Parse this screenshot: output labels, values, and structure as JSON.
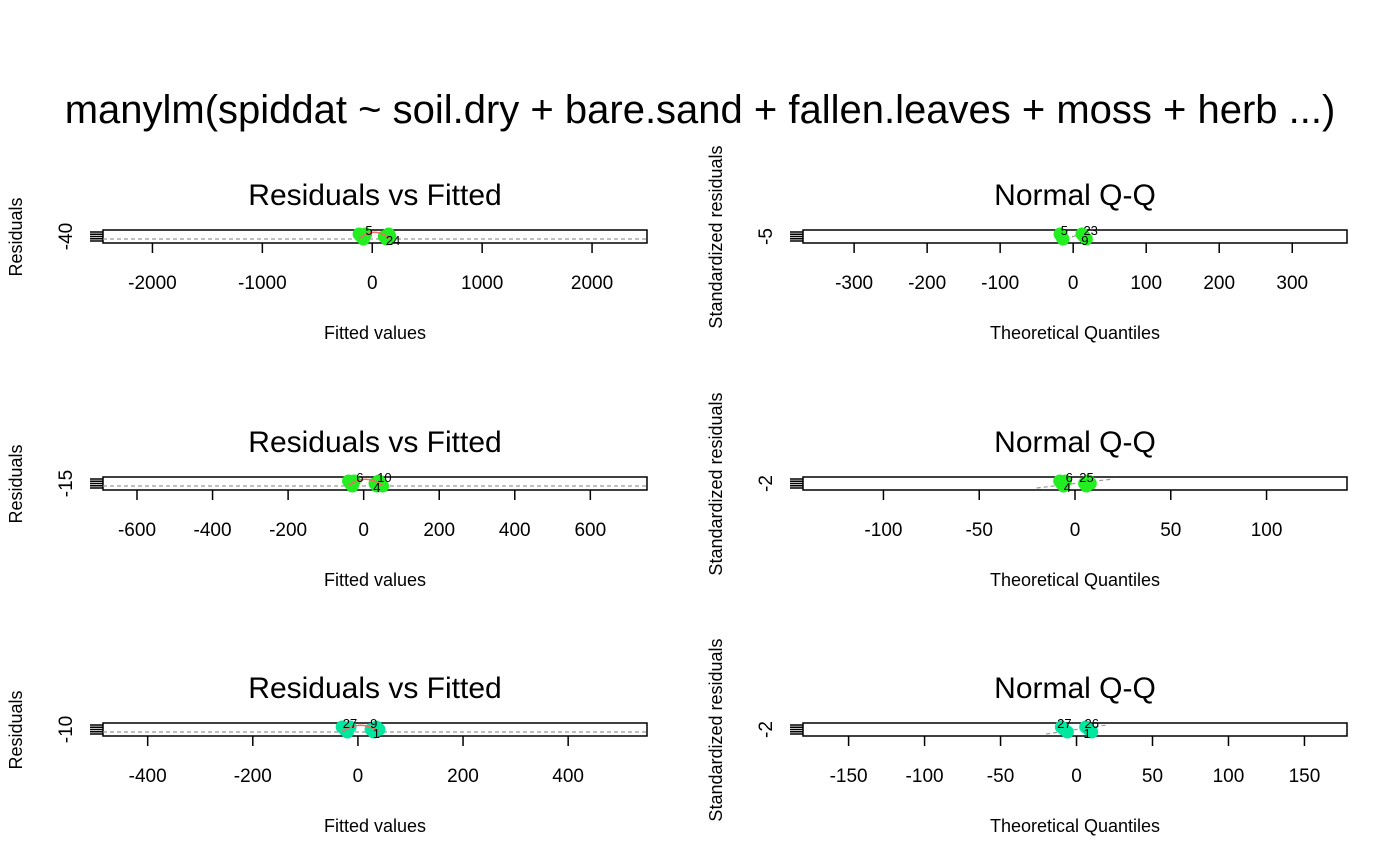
{
  "figure": {
    "title": "manylm(spiddat ~ soil.dry + bare.sand + fallen.leaves + moss + herb ...)"
  },
  "colors": {
    "title_red": "#ff0000",
    "point_green": "#22ee22",
    "point_teal": "#00e8a0",
    "smooth_red": "#ff6666",
    "reference_gray": "#999999"
  },
  "chart_data": [
    {
      "type": "scatter",
      "title": "Residuals vs Fitted",
      "xlabel": "Fitted values",
      "ylabel": "Residuals",
      "xlim": [
        -2450,
        2500
      ],
      "xticks": [
        -2000,
        -1000,
        0,
        1000,
        2000
      ],
      "yticks": [
        -40
      ],
      "point_color": "#22ee22",
      "reference_line": "dashed-horizontal-at-0",
      "x": [
        -120,
        -100,
        -80,
        -60,
        110,
        130,
        150,
        160
      ],
      "labels": [
        {
          "text": "5",
          "x": -30
        },
        {
          "text": "24",
          "x": 190
        }
      ]
    },
    {
      "type": "scatter",
      "title": "Normal Q-Q",
      "xlabel": "Theoretical Quantiles",
      "ylabel": "Standardized residuals",
      "xlim": [
        -370,
        375
      ],
      "xticks": [
        -300,
        -200,
        -100,
        0,
        100,
        200,
        300
      ],
      "yticks": [
        -5
      ],
      "point_color": "#22ee22",
      "reference_line": "dashed-diagonal",
      "x": [
        -18,
        -16,
        -14,
        12,
        15,
        18
      ],
      "labels": [
        {
          "text": "5",
          "x": -12
        },
        {
          "text": "9",
          "x": 16
        },
        {
          "text": "23",
          "x": 24
        }
      ]
    },
    {
      "type": "scatter",
      "title": "Residuals vs Fitted",
      "xlabel": "Fitted values",
      "ylabel": "Residuals",
      "xlim": [
        -690,
        750
      ],
      "xticks": [
        -600,
        -400,
        -200,
        0,
        200,
        400,
        600
      ],
      "yticks": [
        -15
      ],
      "point_color": "#22ee22",
      "reference_line": "dashed-horizontal-at-0",
      "x": [
        -40,
        -35,
        -30,
        -25,
        30,
        35,
        40,
        45,
        50
      ],
      "labels": [
        {
          "text": "6",
          "x": -10
        },
        {
          "text": "4",
          "x": 35
        },
        {
          "text": "10",
          "x": 55
        }
      ]
    },
    {
      "type": "scatter",
      "title": "Normal Q-Q",
      "xlabel": "Theoretical Quantiles",
      "ylabel": "Standardized residuals",
      "xlim": [
        -142,
        142
      ],
      "xticks": [
        -100,
        -50,
        0,
        50,
        100
      ],
      "yticks": [
        -2
      ],
      "point_color": "#22ee22",
      "reference_line": "dashed-diagonal",
      "x": [
        -8,
        -7,
        -6,
        -5,
        5,
        6,
        7,
        8
      ],
      "labels": [
        {
          "text": "6",
          "x": -3
        },
        {
          "text": "4",
          "x": -4
        },
        {
          "text": "25",
          "x": 6
        }
      ]
    },
    {
      "type": "scatter",
      "title": "Residuals vs Fitted",
      "xlabel": "Fitted values",
      "ylabel": "Residuals",
      "xlim": [
        -485,
        550
      ],
      "xticks": [
        -400,
        -200,
        0,
        200,
        400
      ],
      "yticks": [
        -10
      ],
      "point_color": "#00e8a0",
      "reference_line": "dashed-horizontal-at-0",
      "x": [
        -30,
        -25,
        -20,
        -15,
        25,
        30,
        35,
        40
      ],
      "labels": [
        {
          "text": "27",
          "x": -15
        },
        {
          "text": "1",
          "x": 35
        },
        {
          "text": "9",
          "x": 30
        }
      ]
    },
    {
      "type": "scatter",
      "title": "Normal Q-Q",
      "xlabel": "Theoretical Quantiles",
      "ylabel": "Standardized residuals",
      "xlim": [
        -180,
        178
      ],
      "xticks": [
        -150,
        -100,
        -50,
        0,
        50,
        100,
        150
      ],
      "yticks": [
        -2
      ],
      "point_color": "#00e8a0",
      "reference_line": "dashed-diagonal",
      "x": [
        -10,
        -8,
        -6,
        6,
        8,
        10
      ],
      "labels": [
        {
          "text": "27",
          "x": -8
        },
        {
          "text": "1",
          "x": 7
        },
        {
          "text": "26",
          "x": 10
        }
      ]
    }
  ]
}
